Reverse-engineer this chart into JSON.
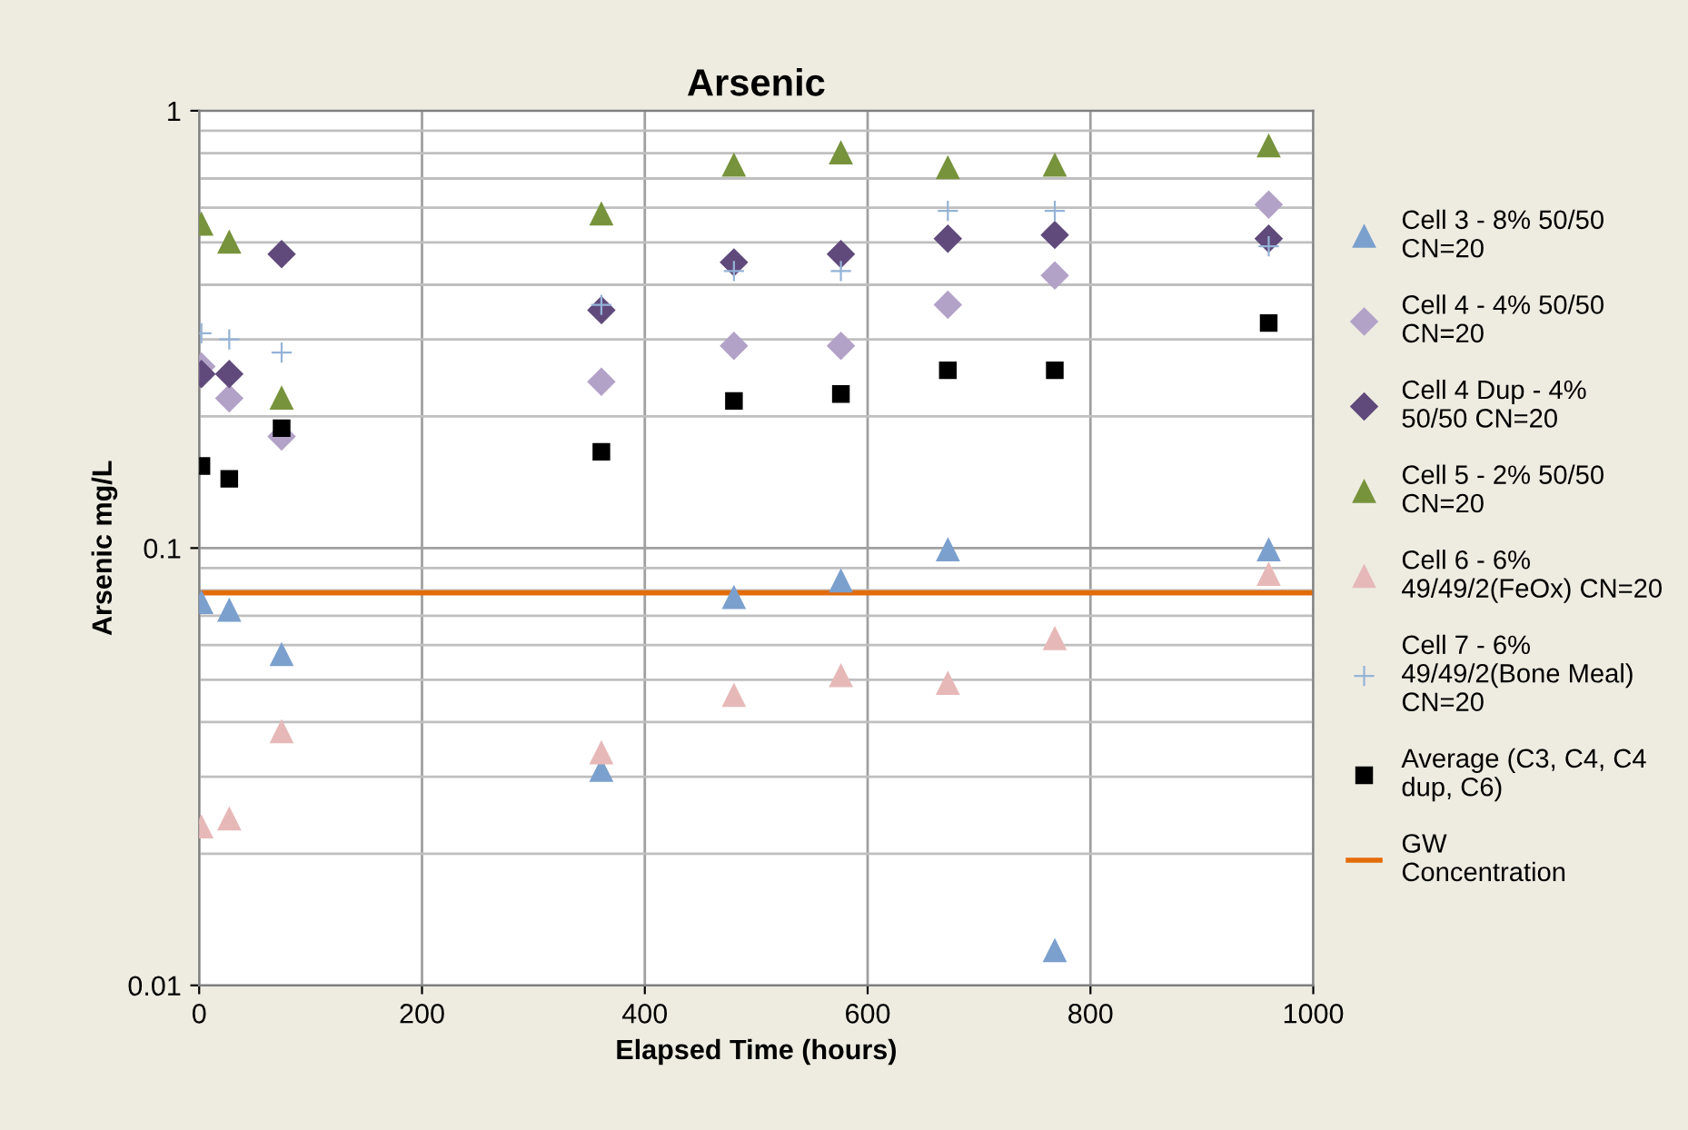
{
  "chart_data": {
    "type": "scatter",
    "title": "Arsenic",
    "xlabel": "Elapsed Time (hours)",
    "ylabel": "Arsenic mg/L",
    "x": [
      2,
      27,
      74,
      361,
      480,
      576,
      672,
      768,
      960
    ],
    "series": [
      {
        "name": "Cell 3 - 8% 50/50 CN=20",
        "color": "#7ba0cd",
        "marker": "triangle",
        "values": [
          0.075,
          0.072,
          0.057,
          0.031,
          0.077,
          0.084,
          0.099,
          0.012,
          0.099
        ]
      },
      {
        "name": "Cell 4 - 4% 50/50 CN=20",
        "color": "#b3a2c7",
        "marker": "diamond",
        "values": [
          0.26,
          0.22,
          0.18,
          0.24,
          0.29,
          0.29,
          0.36,
          0.42,
          0.61
        ]
      },
      {
        "name": "Cell 4 Dup - 4% 50/50 CN=20",
        "color": "#604a7b",
        "marker": "diamond",
        "values": [
          0.25,
          0.25,
          0.47,
          0.35,
          0.45,
          0.47,
          0.51,
          0.52,
          0.51
        ]
      },
      {
        "name": "Cell 5 - 2% 50/50 CN=20",
        "color": "#77933c",
        "marker": "triangle",
        "values": [
          0.55,
          0.5,
          0.22,
          0.58,
          0.75,
          0.8,
          0.74,
          0.75,
          0.83
        ]
      },
      {
        "name": "Cell 6 - 6% 49/49/2(FeOx) CN=20",
        "color": "#e6b9b8",
        "marker": "triangle",
        "values": [
          0.023,
          0.024,
          0.038,
          0.034,
          0.046,
          0.051,
          0.049,
          0.062,
          0.087
        ]
      },
      {
        "name": "Cell 7 - 6% 49/49/2(Bone Meal) CN=20",
        "color": "#95b3d7",
        "marker": "cross",
        "values": [
          0.31,
          0.3,
          0.28,
          0.36,
          0.43,
          0.43,
          0.59,
          0.59,
          0.49
        ]
      },
      {
        "name": "Average (C3, C4, C4 dup, C6)",
        "color": "#000000",
        "marker": "square",
        "values": [
          0.154,
          0.144,
          0.188,
          0.166,
          0.217,
          0.225,
          0.255,
          0.255,
          0.327
        ]
      }
    ],
    "ref_lines": [
      {
        "axis": "y",
        "value": 0.079,
        "label": "GW Concentration",
        "color": "#e36c09",
        "line_style": "solid"
      }
    ],
    "log": "y",
    "xlim": [
      0,
      1000
    ],
    "xticks": [
      0,
      200,
      400,
      600,
      800,
      1000
    ],
    "ylim": [
      0.01,
      1
    ],
    "yticks": [
      0.01,
      0.1,
      1
    ],
    "grid": true,
    "legend": "right"
  }
}
